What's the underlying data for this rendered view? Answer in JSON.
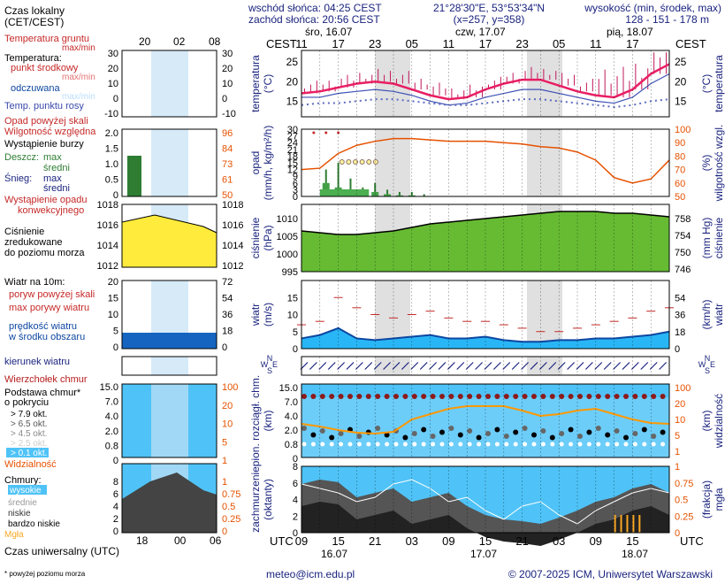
{
  "header": {
    "sunrise": "wschód słońca: 04:25 CEST",
    "sunset": "zachód słońca: 20:56 CEST",
    "coords": "21°28'30\"E, 53°53'34\"N",
    "grid": "(x=257, y=358)",
    "elevation_label": "wysokość (min, środek, max)",
    "elevation_values": "128 - 151 - 178 m"
  },
  "day_labels": [
    "śro, 16.07",
    "czw, 17.07",
    "pią, 18.07"
  ],
  "day_labels_utc": [
    "16.07",
    "17.07",
    "18.07"
  ],
  "tz_local": "CEST",
  "tz_utc": "UTC",
  "local_hours": [
    "11",
    "17",
    "23",
    "05",
    "11",
    "17",
    "23",
    "05",
    "11",
    "17"
  ],
  "utc_hours": [
    "09",
    "15",
    "21",
    "03",
    "09",
    "15",
    "21",
    "03",
    "09",
    "15"
  ],
  "legend": {
    "local_time": "Czas lokalny",
    "local_time_sub": "(CET/CEST)",
    "local_ticks": [
      "20",
      "02",
      "08"
    ],
    "utc_ticks": [
      "18",
      "00",
      "06"
    ],
    "utc_label": "Czas uniwersalny (UTC)",
    "temp": {
      "ground": "Temperatura gruntu",
      "ground_sub": "max/min",
      "title": "Temperatura:",
      "mid": "punkt środkowy",
      "maxmin": "max/min",
      "perceived": "odczuwana",
      "perceived_maxmin": "max/min",
      "dew": "Temp. punktu rosy",
      "ticks_left": [
        "30",
        "20",
        "10",
        "0",
        "-10"
      ],
      "ticks_right": [
        "30",
        "20",
        "10",
        "0",
        "-10"
      ]
    },
    "precip": {
      "rain_above": "Opad powyżej skali",
      "humidity": "Wilgotność względna",
      "storm": "Wystąpienie burzy",
      "rain": "Deszcz:",
      "rain_max": "max",
      "rain_mid": "średni",
      "snow": "Śnieg:",
      "snow_max": "max",
      "snow_mid": "średni",
      "conv": "Wystąpienie opadu",
      "conv2": "konwekcyjnego",
      "ticks_left": [
        "2.0",
        "1.5",
        "1.0",
        "0.5",
        "0"
      ],
      "ticks_right": [
        "96",
        "84",
        "73",
        "61",
        "50"
      ]
    },
    "pressure": {
      "l1": "Ciśnienie",
      "l2": "zredukowane",
      "l3": "do poziomu morza",
      "ticks_left": [
        "1018",
        "1016",
        "1014",
        "1012"
      ],
      "ticks_right": [
        "1018",
        "1016",
        "1014",
        "1012"
      ]
    },
    "wind": {
      "title": "Wiatr na 10m:",
      "gust_above": "poryw powyżej skali",
      "gust_max": "max porywy wiatru",
      "speed": "prędkość wiatru",
      "speed2": "w środku obszaru",
      "dir": "kierunek wiatru",
      "ticks_left": [
        "20",
        "15",
        "10",
        "5",
        "0"
      ],
      "ticks_right": [
        "72",
        "54",
        "36",
        "18",
        "0"
      ]
    },
    "cloudbase": {
      "top": "Wierzchołek chmur",
      "base": "Podstawa chmur*",
      "cover": "o pokryciu",
      "o79": "> 7.9 okt.",
      "o65": "> 6.5 okt.",
      "o45": "> 4.5 okt.",
      "o25": "> 2.5 okt.",
      "o01": "> 0.1 okt.",
      "vis": "Widzialność",
      "ticks_left": [
        "15.0",
        "7.0",
        "4.0",
        "2.0",
        "0.8",
        "0"
      ],
      "ticks_right": [
        "100",
        "20",
        "10",
        "5",
        "1"
      ]
    },
    "clouds": {
      "title": "Chmury:",
      "high": "wysokie",
      "mid": "średnie",
      "low": "niskie",
      "vlow": "bardzo niskie",
      "fog": "Mgła",
      "ticks_left": [
        "8",
        "6",
        "4",
        "2",
        "0"
      ],
      "ticks_right": [
        "1",
        "0.75",
        "0.5",
        "0.25",
        "0"
      ]
    },
    "footnote": "* powyżej poziomu morza"
  },
  "panels": {
    "temp": {
      "yl": "temperatura",
      "yl2": "(°C)",
      "yr": "temperatura",
      "yr2": "(°C)",
      "ticks": [
        "25",
        "20",
        "15"
      ],
      "ylim": [
        11,
        28
      ]
    },
    "precip": {
      "yl": "opad",
      "yl2": "(mm/h, kg/m²/h)",
      "yr": "wilgotność wzgl.",
      "yr2": "(%)",
      "ticks_left": [
        "30",
        "27",
        "24",
        "21",
        "18",
        "15",
        "12",
        "9",
        "6",
        "3",
        "0"
      ],
      "ticks_right": [
        "100",
        "90",
        "80",
        "70",
        "60",
        "50"
      ]
    },
    "pressure": {
      "yl": "ciśnienie",
      "yl2": "(hPa)",
      "yr": "ciśnienie",
      "yr2": "(mm Hg)",
      "ticks_left": [
        "1010",
        "1005",
        "1000",
        "995"
      ],
      "ticks_right": [
        "758",
        "754",
        "750",
        "746"
      ]
    },
    "wind": {
      "yl": "wiatr",
      "yl2": "(m/s)",
      "yr": "wiatr",
      "yr2": "(km/h)",
      "ticks_left": [
        "15",
        "10",
        "5",
        "0"
      ],
      "ticks_right": [
        "54",
        "36",
        "18",
        "0"
      ]
    },
    "winddir": {
      "nsew": [
        "N",
        "W",
        "S",
        "E"
      ]
    },
    "cloud": {
      "yl": "pion. rozciągł. chm.",
      "yl2": "(km)",
      "yr": "widzialność",
      "yr2": "(km)",
      "ticks_left": [
        "15.0",
        "7.0",
        "4.0",
        "2.0",
        "0.8",
        "0"
      ],
      "ticks_right": [
        "100",
        "20",
        "10",
        "5",
        "1"
      ]
    },
    "cover": {
      "yl": "zachmurzenie",
      "yl2": "(oktanty)",
      "yr": "mgła",
      "yr2": "(frakcja)",
      "ticks_left": [
        "8",
        "6",
        "4",
        "2",
        "0"
      ],
      "ticks_right": [
        "1",
        "0.75",
        "0.5",
        "0.25",
        "0"
      ]
    }
  },
  "footer": {
    "email": "meteo@icm.edu.pl",
    "copyright": "© 2007-2025 ICM, Uniwersytet Warszawski"
  },
  "chart_data": [
    {
      "type": "line",
      "title": "temperatura",
      "ylabel": "temperatura (°C)",
      "ylim": [
        11,
        28
      ],
      "x_hours_utc_from_start": [
        0,
        3,
        6,
        9,
        12,
        15,
        18,
        21,
        24,
        27,
        30,
        33,
        36,
        39,
        42,
        45,
        48,
        51,
        54,
        57,
        60
      ],
      "series": [
        {
          "values": [
            17,
            17.5,
            18.5,
            19.5,
            20,
            19.5,
            18,
            16.5,
            15.5,
            16,
            18,
            19.5,
            20.5,
            20.5,
            19,
            17.5,
            16.5,
            16,
            18,
            22,
            24.5
          ]
        },
        {
          "values": [
            16,
            16,
            17,
            17.5,
            18,
            17.5,
            16.5,
            15,
            14,
            14.5,
            16,
            17,
            18,
            18,
            17,
            16,
            15,
            14.5,
            16,
            19.5,
            22
          ]
        },
        {
          "values": [
            14,
            14.5,
            14.5,
            15,
            15.5,
            15.5,
            15,
            14.5,
            14,
            14,
            14.5,
            15,
            15.5,
            15.5,
            15,
            14.5,
            14,
            13.5,
            14,
            15,
            15.5
          ]
        }
      ]
    },
    {
      "type": "line",
      "title": "wilgotność wzgl.",
      "ylabel": "wilgotność wzgl. (%)",
      "ylim": [
        50,
        100
      ],
      "series": [
        {
          "values": [
            70,
            71,
            82,
            88,
            91,
            93,
            93,
            92,
            91,
            91,
            91,
            90,
            89,
            87,
            86,
            83,
            77,
            64,
            60,
            63,
            77
          ]
        }
      ]
    },
    {
      "type": "area",
      "title": "ciśnienie",
      "ylabel": "ciśnienie (hPa)",
      "ylim": [
        995,
        1014
      ],
      "series": [
        {
          "values": [
            1006.5,
            1006,
            1005.5,
            1005.5,
            1006,
            1006.5,
            1007.5,
            1008.5,
            1009,
            1009.5,
            1010,
            1010.5,
            1011,
            1011.5,
            1012,
            1012,
            1012,
            1011.5,
            1011.5,
            1011,
            1010.5
          ]
        }
      ]
    },
    {
      "type": "area",
      "title": "wiatr",
      "ylabel": "wiatr (m/s)",
      "ylim": [
        0,
        20
      ],
      "series": [
        {
          "values": [
            3,
            4,
            6,
            3,
            2.5,
            3,
            3.5,
            4,
            3,
            3,
            3.5,
            2.5,
            2,
            2,
            2.5,
            2.5,
            3,
            3,
            3.5,
            4,
            5
          ]
        },
        {
          "values": [
            7,
            8,
            15,
            12,
            10,
            9,
            10,
            11,
            9,
            8,
            8,
            7,
            6,
            5,
            5,
            6,
            7,
            8,
            9,
            11,
            12
          ]
        }
      ]
    }
  ]
}
